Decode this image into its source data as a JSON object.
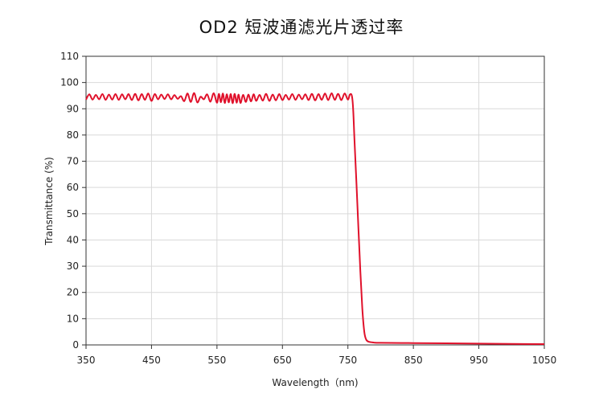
{
  "chart_data": {
    "type": "line",
    "title": "OD2 短波通滤光片透过率",
    "xlabel": "Wavelength（nm)",
    "ylabel": "Transmittance (%)",
    "xlim": [
      350,
      1050
    ],
    "ylim": [
      0,
      110
    ],
    "x_ticks": [
      "350",
      "450",
      "550",
      "650",
      "750",
      "850",
      "950",
      "1050"
    ],
    "y_ticks": [
      "0",
      "10",
      "20",
      "30",
      "40",
      "50",
      "60",
      "70",
      "80",
      "90",
      "100",
      "110"
    ],
    "grid": true,
    "line_color": "#e0112b",
    "series": [
      {
        "values": [
          [
            350,
            93.5
          ],
          [
            355,
            95.5
          ],
          [
            360,
            93.5
          ],
          [
            365,
            95.3
          ],
          [
            370,
            93.6
          ],
          [
            375,
            95.6
          ],
          [
            380,
            93.4
          ],
          [
            385,
            95.4
          ],
          [
            390,
            93.5
          ],
          [
            395,
            95.6
          ],
          [
            400,
            93.4
          ],
          [
            405,
            95.5
          ],
          [
            410,
            93.6
          ],
          [
            415,
            95.6
          ],
          [
            420,
            93.3
          ],
          [
            425,
            95.7
          ],
          [
            430,
            93.2
          ],
          [
            435,
            95.6
          ],
          [
            440,
            93.4
          ],
          [
            445,
            95.8
          ],
          [
            450,
            93.0
          ],
          [
            455,
            95.6
          ],
          [
            460,
            93.6
          ],
          [
            465,
            95.4
          ],
          [
            470,
            93.7
          ],
          [
            475,
            95.5
          ],
          [
            480,
            93.6
          ],
          [
            485,
            95.2
          ],
          [
            490,
            93.8
          ],
          [
            495,
            94.8
          ],
          [
            500,
            92.9
          ],
          [
            505,
            95.8
          ],
          [
            510,
            92.6
          ],
          [
            515,
            96.0
          ],
          [
            520,
            92.4
          ],
          [
            525,
            94.6
          ],
          [
            530,
            93.6
          ],
          [
            535,
            95.5
          ],
          [
            540,
            92.7
          ],
          [
            545,
            95.9
          ],
          [
            550,
            92.3
          ],
          [
            553,
            95.7
          ],
          [
            556,
            92.5
          ],
          [
            559,
            95.8
          ],
          [
            562,
            92.2
          ],
          [
            565,
            95.5
          ],
          [
            568,
            92.4
          ],
          [
            571,
            95.6
          ],
          [
            574,
            92.1
          ],
          [
            577,
            95.7
          ],
          [
            580,
            92.3
          ],
          [
            583,
            95.4
          ],
          [
            586,
            92.2
          ],
          [
            590,
            95.3
          ],
          [
            594,
            92.6
          ],
          [
            598,
            95.4
          ],
          [
            602,
            92.8
          ],
          [
            606,
            95.5
          ],
          [
            610,
            93.0
          ],
          [
            615,
            95.3
          ],
          [
            620,
            93.1
          ],
          [
            625,
            95.7
          ],
          [
            630,
            93.0
          ],
          [
            635,
            95.4
          ],
          [
            640,
            93.2
          ],
          [
            645,
            95.6
          ],
          [
            650,
            93.3
          ],
          [
            655,
            95.3
          ],
          [
            660,
            93.5
          ],
          [
            665,
            95.6
          ],
          [
            670,
            93.4
          ],
          [
            675,
            95.4
          ],
          [
            680,
            93.6
          ],
          [
            685,
            95.5
          ],
          [
            690,
            93.3
          ],
          [
            695,
            95.7
          ],
          [
            700,
            93.2
          ],
          [
            705,
            95.6
          ],
          [
            710,
            93.4
          ],
          [
            715,
            95.8
          ],
          [
            720,
            93.3
          ],
          [
            725,
            95.9
          ],
          [
            730,
            93.4
          ],
          [
            735,
            95.7
          ],
          [
            740,
            93.3
          ],
          [
            745,
            95.8
          ],
          [
            750,
            93.5
          ],
          [
            753,
            95.4
          ],
          [
            756,
            95.0
          ],
          [
            758,
            90.0
          ],
          [
            760,
            78.0
          ],
          [
            763,
            62.0
          ],
          [
            766,
            45.0
          ],
          [
            769,
            28.0
          ],
          [
            772,
            14.0
          ],
          [
            775,
            5.0
          ],
          [
            778,
            2.0
          ],
          [
            782,
            1.2
          ],
          [
            790,
            0.9
          ],
          [
            800,
            0.8
          ],
          [
            850,
            0.7
          ],
          [
            900,
            0.6
          ],
          [
            950,
            0.5
          ],
          [
            1000,
            0.4
          ],
          [
            1050,
            0.3
          ]
        ]
      }
    ]
  }
}
